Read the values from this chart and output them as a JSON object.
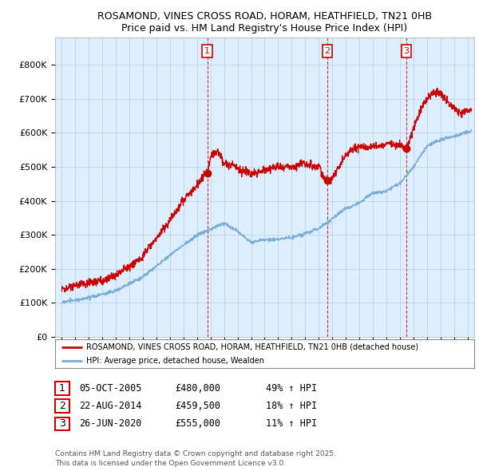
{
  "title1": "ROSAMOND, VINES CROSS ROAD, HORAM, HEATHFIELD, TN21 0HB",
  "title2": "Price paid vs. HM Land Registry's House Price Index (HPI)",
  "xlim_start": 1994.5,
  "xlim_end": 2025.5,
  "ylim_min": 0,
  "ylim_max": 880000,
  "yticks": [
    0,
    100000,
    200000,
    300000,
    400000,
    500000,
    600000,
    700000,
    800000
  ],
  "ytick_labels": [
    "£0",
    "£100K",
    "£200K",
    "£300K",
    "£400K",
    "£500K",
    "£600K",
    "£700K",
    "£800K"
  ],
  "xticks": [
    1995,
    1996,
    1997,
    1998,
    1999,
    2000,
    2001,
    2002,
    2003,
    2004,
    2005,
    2006,
    2007,
    2008,
    2009,
    2010,
    2011,
    2012,
    2013,
    2014,
    2015,
    2016,
    2017,
    2018,
    2019,
    2020,
    2021,
    2022,
    2023,
    2024,
    2025
  ],
  "vline_dates": [
    2005.76,
    2014.64,
    2020.48
  ],
  "vline_labels": [
    "1",
    "2",
    "3"
  ],
  "sale_dates": [
    2005.76,
    2014.64,
    2020.48
  ],
  "sale_prices": [
    480000,
    459500,
    555000
  ],
  "red_line_color": "#cc0000",
  "blue_line_color": "#7aadd4",
  "plot_bg": "#ddeeff",
  "grid_color": "#bbccdd",
  "legend_entries": [
    "ROSAMOND, VINES CROSS ROAD, HORAM, HEATHFIELD, TN21 0HB (detached house)",
    "HPI: Average price, detached house, Wealden"
  ],
  "table_rows": [
    {
      "num": "1",
      "date": "05-OCT-2005",
      "price": "£480,000",
      "hpi": "49% ↑ HPI"
    },
    {
      "num": "2",
      "date": "22-AUG-2014",
      "price": "£459,500",
      "hpi": "18% ↑ HPI"
    },
    {
      "num": "3",
      "date": "26-JUN-2020",
      "price": "£555,000",
      "hpi": "11% ↑ HPI"
    }
  ],
  "footer": "Contains HM Land Registry data © Crown copyright and database right 2025.\nThis data is licensed under the Open Government Licence v3.0."
}
